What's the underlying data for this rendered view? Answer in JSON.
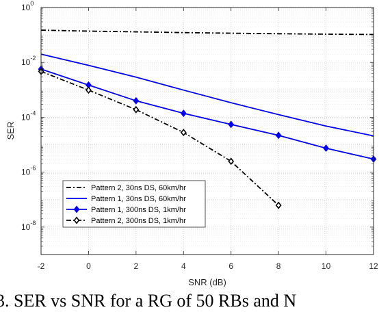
{
  "caption": "3. SER vs SNR for a RG of 50 RBs and N",
  "chart_data": {
    "type": "line",
    "title": "",
    "xlabel": "SNR (dB)",
    "ylabel": "SER",
    "xlim": [
      -2,
      12
    ],
    "ylim": [
      1e-09,
      1
    ],
    "yscale": "log",
    "grid": true,
    "minor_grid": true,
    "legend_position": "bottom-left",
    "x_ticks": [
      -2,
      0,
      2,
      4,
      6,
      8,
      10,
      12
    ],
    "x_tick_labels": [
      "-2",
      "0",
      "2",
      "4",
      "6",
      "8",
      "10",
      "12"
    ],
    "y_ticks": [
      1,
      0.01,
      0.0001,
      1e-06,
      1e-08
    ],
    "y_tick_labels": [
      {
        "base": "10",
        "exp": "0"
      },
      {
        "base": "10",
        "exp": "-2"
      },
      {
        "base": "10",
        "exp": "-4"
      },
      {
        "base": "10",
        "exp": "-6"
      },
      {
        "base": "10",
        "exp": "-8"
      }
    ],
    "series": [
      {
        "name": "Pattern 2, 30ns DS, 60km/hr",
        "color": "#000000",
        "line": "dashdot",
        "marker": "none",
        "x": [
          -2,
          0,
          2,
          4,
          6,
          8,
          10,
          12
        ],
        "y": [
          0.15,
          0.138,
          0.13,
          0.122,
          0.116,
          0.111,
          0.107,
          0.104
        ]
      },
      {
        "name": "Pattern 1, 30ns DS, 60km/hr",
        "color": "#0000ee",
        "line": "solid",
        "marker": "none",
        "x": [
          -2,
          0,
          2,
          4,
          6,
          8,
          10,
          12
        ],
        "y": [
          0.02,
          0.0078,
          0.0029,
          0.00098,
          0.00034,
          0.000125,
          4.8e-05,
          2.1e-05
        ]
      },
      {
        "name": "Pattern 1, 300ns DS, 1km/hr",
        "color": "#0000ee",
        "line": "solid",
        "marker": "diamond",
        "x": [
          -2,
          0,
          2,
          4,
          6,
          8,
          10,
          12
        ],
        "y": [
          0.0057,
          0.0015,
          0.0004,
          0.00014,
          5.5e-05,
          2.2e-05,
          7.5e-06,
          3e-06
        ]
      },
      {
        "name": "Pattern 2, 300ns DS, 1km/hr",
        "color": "#000000",
        "line": "dashdot",
        "marker": "diamond-open",
        "x": [
          -2,
          0,
          2,
          4,
          6,
          8
        ],
        "y": [
          0.0047,
          0.00098,
          0.00019,
          2.8e-05,
          2.5e-06,
          6.2e-08
        ]
      }
    ]
  }
}
